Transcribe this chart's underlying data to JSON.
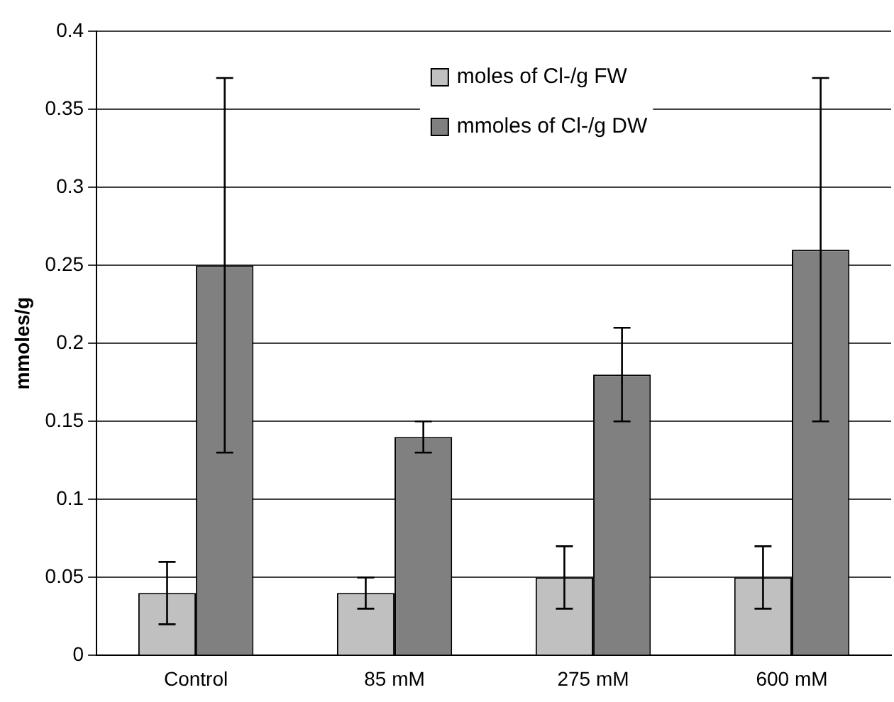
{
  "chart_data": {
    "type": "bar",
    "ylabel": "mmoles/g",
    "categories": [
      "Control",
      "85 mM",
      "275 mM",
      "600 mM"
    ],
    "series": [
      {
        "name": "moles of Cl-/g FW",
        "color": "#c0c0c0",
        "values": [
          0.04,
          0.04,
          0.05,
          0.05
        ],
        "errors": [
          0.02,
          0.01,
          0.02,
          0.02
        ]
      },
      {
        "name": "mmoles of Cl-/g DW",
        "color": "#808080",
        "values": [
          0.25,
          0.14,
          0.18,
          0.26
        ],
        "errors": [
          0.12,
          0.01,
          0.03,
          0.11
        ]
      }
    ],
    "ylim": [
      0,
      0.4
    ],
    "yticks": [
      0,
      0.05,
      0.1,
      0.15,
      0.2,
      0.25,
      0.3,
      0.35,
      0.4
    ],
    "grid": "y",
    "legend": "top"
  }
}
